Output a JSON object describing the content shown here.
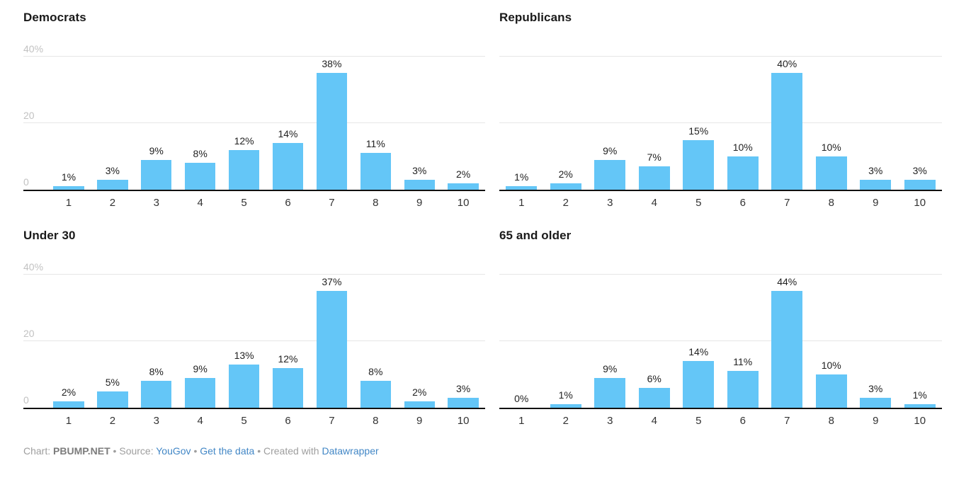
{
  "colors": {
    "bar": "#64c6f7",
    "gridline": "#e6e6e6",
    "baseline": "#111111",
    "y_tick_text": "#c2c2c2",
    "x_tick_text": "#333333",
    "value_label_text": "#222222",
    "footer_text": "#9e9e9e",
    "footer_link": "#4287c6"
  },
  "chart_data": {
    "type": "bar",
    "categories": [
      "1",
      "2",
      "3",
      "4",
      "5",
      "6",
      "7",
      "8",
      "9",
      "10"
    ],
    "ylim": [
      0,
      40
    ],
    "grid": "on",
    "y_ticks": [
      {
        "label": "40%",
        "value": 40
      },
      {
        "label": "20",
        "value": 20
      },
      {
        "label": "0",
        "value": 0
      }
    ],
    "value_suffix": "%",
    "charts": [
      {
        "title": "Democrats",
        "show_y_axis": true,
        "values": [
          1,
          3,
          9,
          8,
          12,
          14,
          38,
          11,
          3,
          2
        ],
        "value_labels": [
          "1%",
          "3%",
          "9%",
          "8%",
          "12%",
          "14%",
          "38%",
          "11%",
          "3%",
          "2%"
        ]
      },
      {
        "title": "Republicans",
        "show_y_axis": false,
        "values": [
          1,
          2,
          9,
          7,
          15,
          10,
          40,
          10,
          3,
          3
        ],
        "value_labels": [
          "1%",
          "2%",
          "9%",
          "7%",
          "15%",
          "10%",
          "40%",
          "10%",
          "3%",
          "3%"
        ]
      },
      {
        "title": "Under 30",
        "show_y_axis": true,
        "values": [
          2,
          5,
          8,
          9,
          13,
          12,
          37,
          8,
          2,
          3
        ],
        "value_labels": [
          "2%",
          "5%",
          "8%",
          "9%",
          "13%",
          "12%",
          "37%",
          "8%",
          "2%",
          "3%"
        ]
      },
      {
        "title": "65 and older",
        "show_y_axis": false,
        "values": [
          0,
          1,
          9,
          6,
          14,
          11,
          44,
          10,
          3,
          1
        ],
        "value_labels": [
          "0%",
          "1%",
          "9%",
          "6%",
          "14%",
          "11%",
          "44%",
          "10%",
          "3%",
          "1%"
        ]
      }
    ]
  },
  "footer": {
    "segments": [
      {
        "text": "Chart: ",
        "style": "muted"
      },
      {
        "text": "PBUMP.NET",
        "style": "bold"
      },
      {
        "text": " • ",
        "style": "muted"
      },
      {
        "text": "Source: ",
        "style": "muted"
      },
      {
        "text": "YouGov",
        "style": "link"
      },
      {
        "text": " • ",
        "style": "muted"
      },
      {
        "text": "Get the data",
        "style": "link"
      },
      {
        "text": " • ",
        "style": "muted"
      },
      {
        "text": "Created with ",
        "style": "muted"
      },
      {
        "text": "Datawrapper",
        "style": "link"
      }
    ]
  }
}
